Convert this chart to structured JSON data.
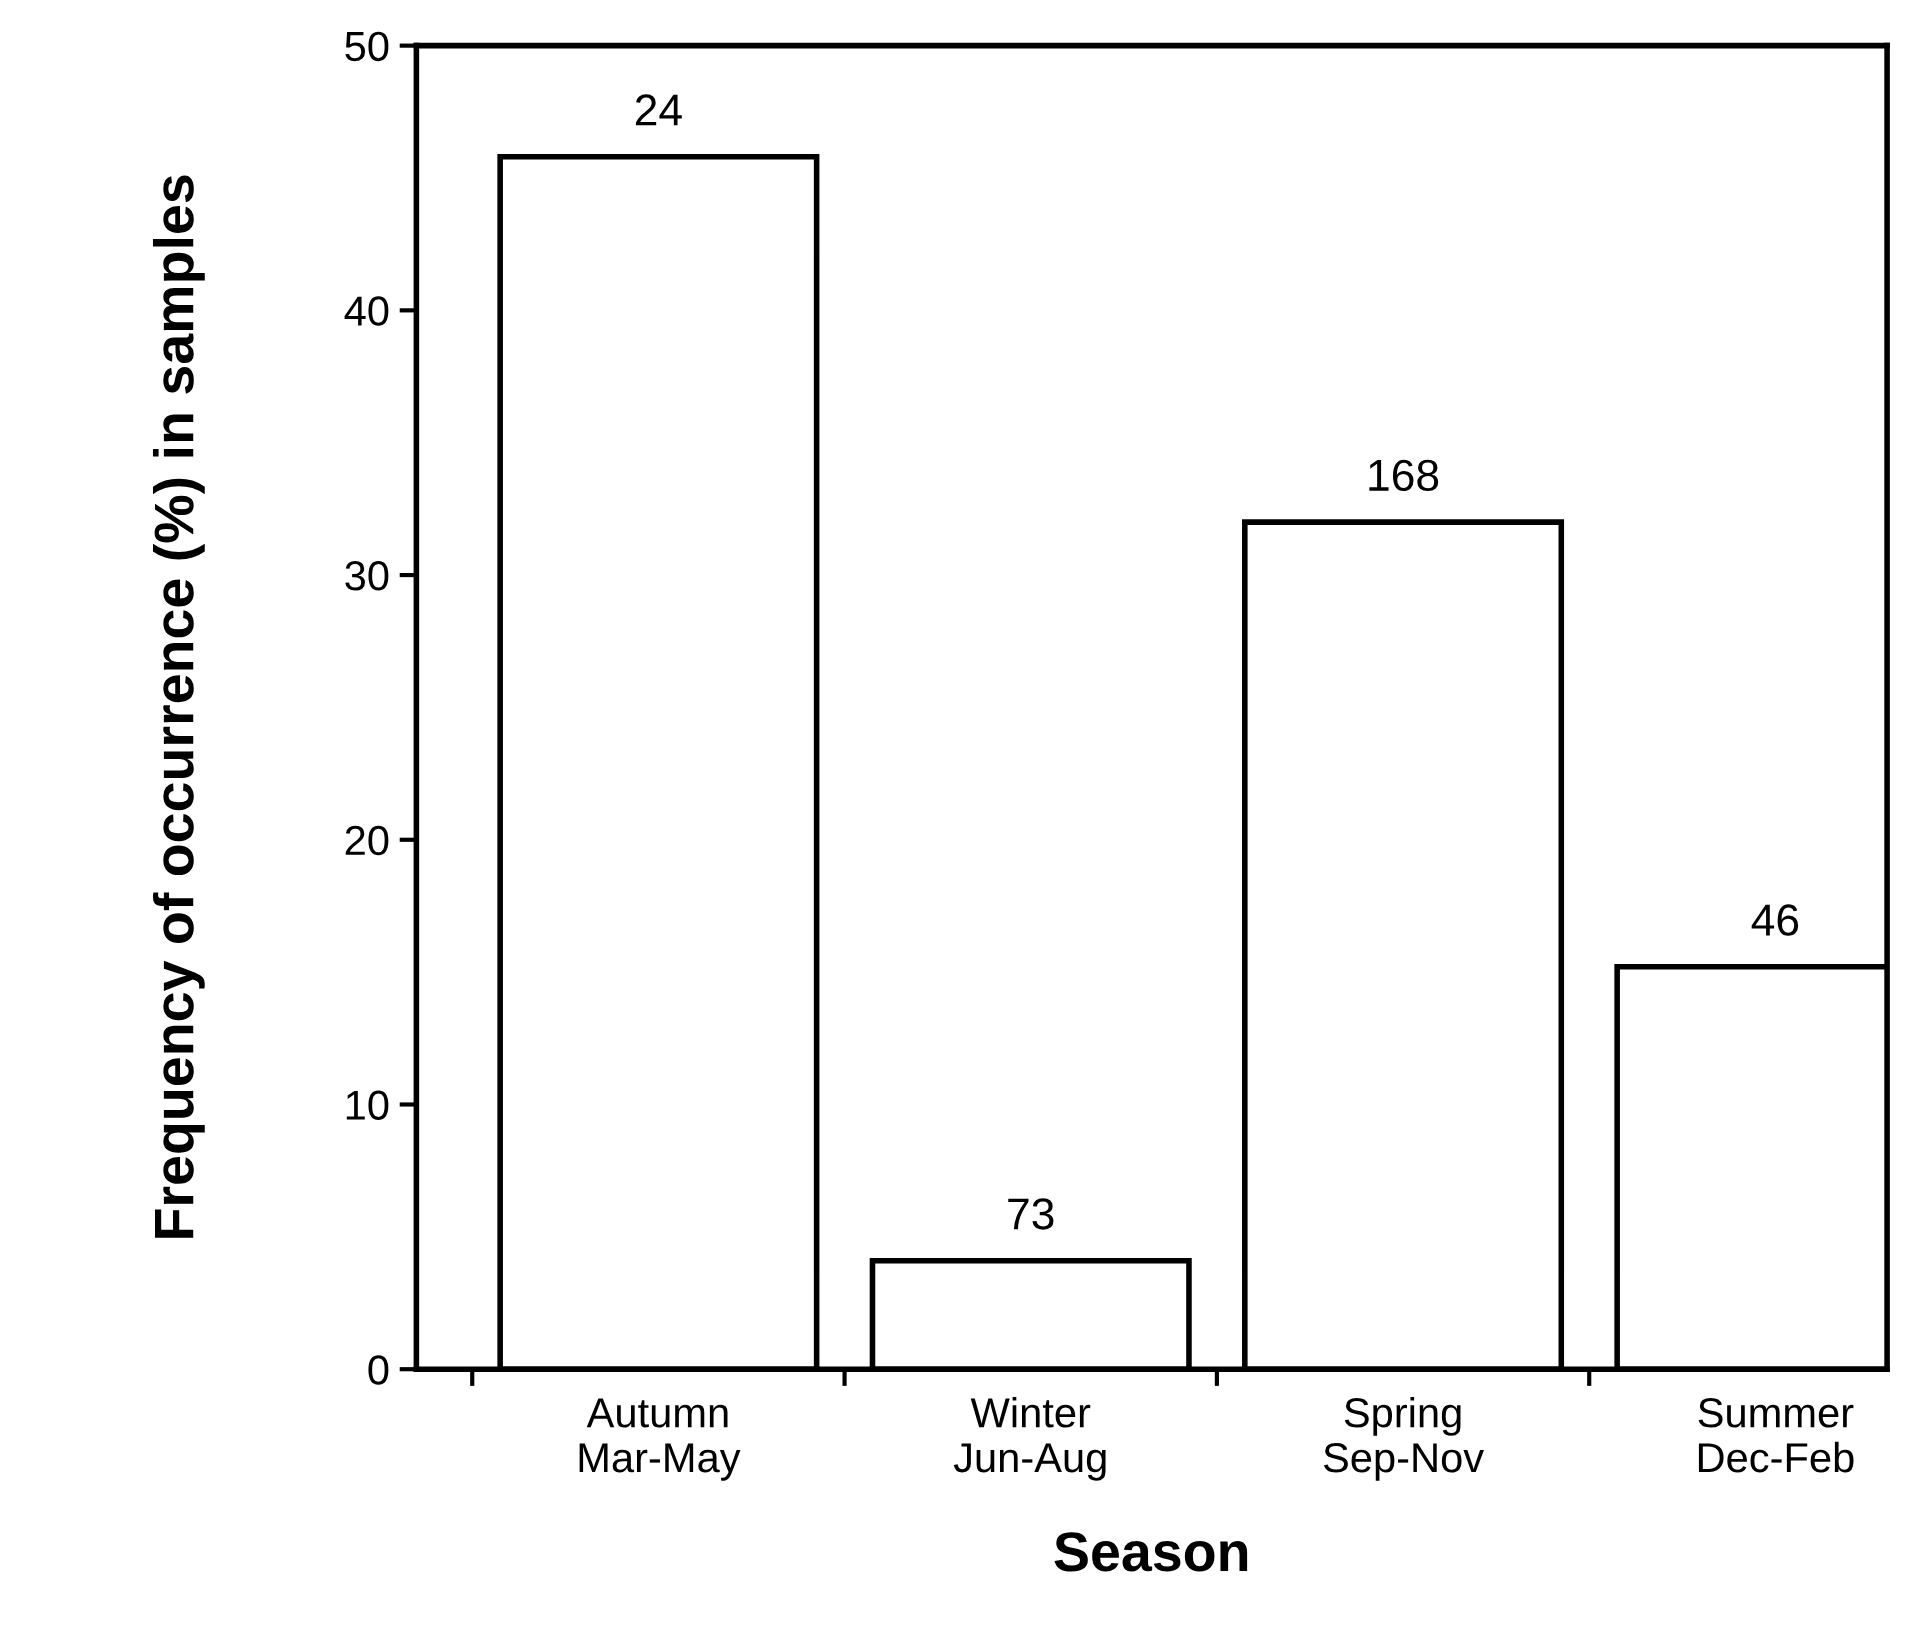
{
  "chart_data": {
    "type": "bar",
    "xlabel": "Season",
    "ylabel": "Frequency of occurrence (%) in samples",
    "categories": [
      "Autumn\nMar-May",
      "Winter\nJun-Aug",
      "Spring\nSep-Nov",
      "Summer\nDec-Feb"
    ],
    "values": [
      45.8,
      4.1,
      32.0,
      15.2
    ],
    "color": "#ffffff",
    "ylim": [
      0,
      50
    ],
    "yticks": [
      0,
      10,
      20,
      30,
      40,
      50
    ],
    "grid": false,
    "annotations": [
      {
        "text": "24",
        "x": "Autumn\nMar-May",
        "y": 45.8
      },
      {
        "text": "73",
        "x": "Winter\nJun-Aug",
        "y": 4.1
      },
      {
        "text": "168",
        "x": "Spring\nSep-Nov",
        "y": 32.0
      },
      {
        "text": "46",
        "x": "Summer\nDec-Feb",
        "y": 15.2
      }
    ]
  }
}
